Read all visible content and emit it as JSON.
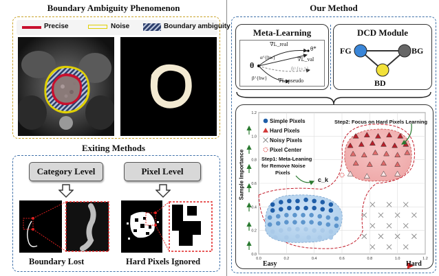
{
  "left": {
    "top_title": "Boundary Ambiguity Phenomenon",
    "legend": {
      "precise": "Precise",
      "noise": "Noise",
      "ambiguity": "Boundary ambiguity"
    },
    "bottom_title": "Exiting Methods",
    "category_level": "Category Level",
    "pixel_level": "Pixel Level",
    "boundary_lost": "Boundary Lost",
    "hard_pixels_ignored": "Hard Pixels Ignored"
  },
  "right": {
    "title": "Our Method",
    "meta_learning": {
      "title": "Meta-Learning",
      "theta": "θ",
      "theta_star": "θ*",
      "theta_next": "θ^{t+1}",
      "alpha": "α^{hw}",
      "beta": "β^{hw}",
      "grad_real": "∇L_real",
      "grad_val": "∇L_val",
      "grad_pseudo": "∇L_pseudo"
    },
    "dcd": {
      "title": "DCD Module",
      "fg": "FG",
      "bg": "BG",
      "bd": "BD",
      "colors": {
        "fg": "#3a86d8",
        "bg": "#666666",
        "bd": "#f2e13a"
      }
    },
    "scatter": {
      "legend": {
        "simple": "Simple Pixels",
        "hard": "Hard Pixels",
        "noisy": "Noisy Pixels",
        "center": "Pixel Center"
      },
      "step1_line1": "Step1: Meta-Leaning",
      "step1_line2": "for Remove Noise",
      "step1_line3": "Pixels",
      "step2": "Step2: Focus on Hard Pixels Learning",
      "center_label": "c_k",
      "ylabel": "Sample Importance",
      "easy": "Easy",
      "hard": "Hard"
    }
  },
  "chart_data": {
    "type": "scatter",
    "xlabel": "",
    "ylabel": "Sample Importance",
    "xlim": [
      0,
      1.2
    ],
    "ylim": [
      0,
      1.2
    ],
    "xticks": [
      "0.0",
      "0.2",
      "0.4",
      "0.6",
      "0.8",
      "1.0",
      "1.2"
    ],
    "yticks": [
      "0.0",
      "0.2",
      "0.4",
      "0.6",
      "0.8",
      "1.0",
      "1.2"
    ],
    "grid": true,
    "legend_position": "top-left",
    "series": [
      {
        "name": "Simple Pixels",
        "points": [
          [
            0.1,
            0.42
          ],
          [
            0.16,
            0.44
          ],
          [
            0.22,
            0.45
          ],
          [
            0.28,
            0.45
          ],
          [
            0.34,
            0.46
          ],
          [
            0.4,
            0.45
          ],
          [
            0.46,
            0.44
          ],
          [
            0.52,
            0.42
          ],
          [
            0.1,
            0.37
          ],
          [
            0.16,
            0.38
          ],
          [
            0.22,
            0.39
          ],
          [
            0.28,
            0.39
          ],
          [
            0.34,
            0.39
          ],
          [
            0.4,
            0.39
          ],
          [
            0.46,
            0.38
          ],
          [
            0.52,
            0.37
          ],
          [
            0.08,
            0.31
          ],
          [
            0.14,
            0.32
          ],
          [
            0.2,
            0.33
          ],
          [
            0.26,
            0.33
          ],
          [
            0.32,
            0.33
          ],
          [
            0.38,
            0.33
          ],
          [
            0.44,
            0.32
          ],
          [
            0.5,
            0.31
          ],
          [
            0.56,
            0.3
          ],
          [
            0.08,
            0.25
          ],
          [
            0.14,
            0.26
          ],
          [
            0.2,
            0.27
          ],
          [
            0.26,
            0.27
          ],
          [
            0.32,
            0.27
          ],
          [
            0.38,
            0.27
          ],
          [
            0.44,
            0.26
          ],
          [
            0.5,
            0.25
          ],
          [
            0.56,
            0.24
          ],
          [
            0.1,
            0.19
          ],
          [
            0.16,
            0.2
          ],
          [
            0.22,
            0.21
          ],
          [
            0.28,
            0.21
          ],
          [
            0.34,
            0.21
          ],
          [
            0.4,
            0.2
          ],
          [
            0.46,
            0.2
          ],
          [
            0.52,
            0.19
          ],
          [
            0.12,
            0.14
          ],
          [
            0.2,
            0.14
          ],
          [
            0.28,
            0.15
          ],
          [
            0.36,
            0.14
          ],
          [
            0.44,
            0.14
          ],
          [
            0.52,
            0.14
          ]
        ]
      },
      {
        "name": "Hard Pixels",
        "points": [
          [
            0.7,
            1.0
          ],
          [
            0.78,
            1.01
          ],
          [
            0.86,
            1.0
          ],
          [
            0.94,
            1.01
          ],
          [
            1.02,
            1.0
          ],
          [
            0.66,
            0.92
          ],
          [
            0.74,
            0.93
          ],
          [
            0.82,
            0.94
          ],
          [
            0.9,
            0.93
          ],
          [
            0.98,
            0.92
          ],
          [
            1.06,
            0.93
          ],
          [
            0.68,
            0.85
          ],
          [
            0.76,
            0.84
          ],
          [
            0.84,
            0.86
          ],
          [
            0.92,
            0.85
          ],
          [
            1.0,
            0.84
          ],
          [
            1.07,
            0.86
          ],
          [
            0.7,
            0.77
          ],
          [
            0.8,
            0.76
          ],
          [
            0.9,
            0.77
          ],
          [
            1.0,
            0.76
          ],
          [
            0.66,
            0.68
          ],
          [
            0.78,
            0.66
          ],
          [
            0.9,
            0.68
          ],
          [
            1.0,
            0.68
          ]
        ]
      },
      {
        "name": "Noisy Pixels",
        "points": [
          [
            0.82,
            0.42
          ],
          [
            0.94,
            0.42
          ],
          [
            1.06,
            0.42
          ],
          [
            0.76,
            0.33
          ],
          [
            0.88,
            0.33
          ],
          [
            1.0,
            0.33
          ],
          [
            1.12,
            0.33
          ],
          [
            0.82,
            0.24
          ],
          [
            0.94,
            0.24
          ],
          [
            1.06,
            0.24
          ],
          [
            0.76,
            0.15
          ],
          [
            0.88,
            0.15
          ],
          [
            1.0,
            0.15
          ],
          [
            1.12,
            0.15
          ],
          [
            0.82,
            0.06
          ],
          [
            0.94,
            0.06
          ],
          [
            1.06,
            0.06
          ]
        ]
      },
      {
        "name": "Pixel Center",
        "points": [
          [
            0.6,
            0.67
          ]
        ]
      }
    ]
  }
}
